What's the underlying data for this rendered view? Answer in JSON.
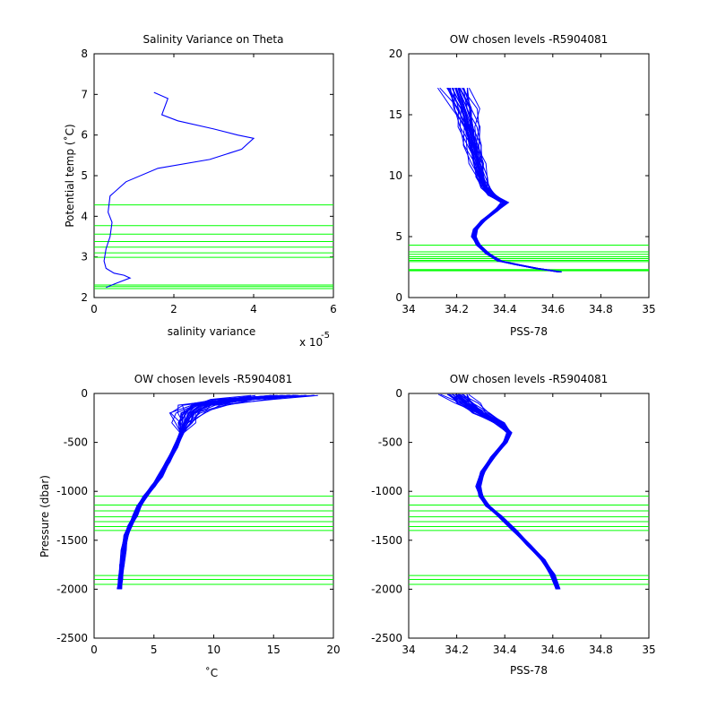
{
  "colors": {
    "profile": "#0000ff",
    "levels": "#00ff00",
    "axes": "#000000",
    "background": "#ffffff"
  },
  "chart_data": [
    {
      "id": "p1",
      "type": "line",
      "title": "Salinity Variance on Theta",
      "xlabel": "salinity variance",
      "x_exponent_label": "x 10",
      "x_exponent_power": "-5",
      "ylabel": "Potential temp (˚C)",
      "xlim": [
        0,
        6
      ],
      "ylim": [
        2,
        8
      ],
      "xticks": [
        0,
        2,
        4,
        6
      ],
      "yticks": [
        2,
        3,
        4,
        5,
        6,
        7,
        8
      ],
      "x_tick_labels": [
        "0",
        "2",
        "4",
        "6"
      ],
      "y_tick_labels": [
        "2",
        "3",
        "4",
        "5",
        "6",
        "7",
        "8"
      ],
      "series": [
        {
          "x": [
            1.5,
            1.85,
            1.7,
            2.1,
            3.0,
            3.6,
            4.0,
            3.7,
            2.9,
            1.6,
            0.8,
            0.4,
            0.35,
            0.45,
            0.4,
            0.3,
            0.25,
            0.3,
            0.5,
            0.75,
            0.9,
            0.55,
            0.3
          ],
          "y": [
            7.05,
            6.9,
            6.5,
            6.35,
            6.15,
            6.0,
            5.92,
            5.65,
            5.4,
            5.18,
            4.85,
            4.5,
            4.1,
            3.85,
            3.5,
            3.2,
            2.9,
            2.72,
            2.6,
            2.55,
            2.48,
            2.35,
            2.25
          ]
        }
      ],
      "levels": [
        4.28,
        3.77,
        3.56,
        3.38,
        3.24,
        3.1,
        2.99,
        2.31,
        2.27,
        2.22
      ]
    },
    {
      "id": "p2",
      "type": "line",
      "title": "OW chosen levels -R5904081",
      "xlabel": "PSS-78",
      "ylabel": "",
      "xlim": [
        34,
        35
      ],
      "ylim": [
        0,
        20
      ],
      "xticks": [
        34,
        34.2,
        34.4,
        34.6,
        34.8,
        35
      ],
      "yticks": [
        0,
        5,
        10,
        15,
        20
      ],
      "x_tick_labels": [
        "34",
        "34.2",
        "34.4",
        "34.6",
        "34.8",
        "35"
      ],
      "y_tick_labels": [
        "0",
        "5",
        "10",
        "15",
        "20"
      ],
      "series": [
        {
          "name": "",
          "x": [
            34.2,
            34.23,
            34.25,
            34.27,
            34.29,
            34.3,
            34.32,
            34.35,
            34.4,
            34.36,
            34.31,
            34.28,
            34.27,
            34.29,
            34.33,
            34.38,
            34.45,
            34.53,
            34.63
          ],
          "y": [
            17.2,
            15.5,
            14.0,
            12.5,
            11.0,
            9.9,
            9.0,
            8.4,
            7.8,
            7.1,
            6.3,
            5.6,
            5.0,
            4.3,
            3.6,
            3.0,
            2.7,
            2.4,
            2.1
          ]
        }
      ],
      "levels": [
        4.3,
        3.75,
        3.55,
        3.35,
        3.2,
        3.05,
        2.95,
        2.3,
        2.25,
        2.2
      ]
    },
    {
      "id": "p3",
      "type": "line",
      "title": "OW chosen levels -R5904081",
      "xlabel": "˚C",
      "ylabel": "Pressure (dbar)",
      "xlim": [
        0,
        20
      ],
      "ylim": [
        -2500,
        0
      ],
      "xticks": [
        0,
        5,
        10,
        15,
        20
      ],
      "yticks": [
        -2500,
        -2000,
        -1500,
        -1000,
        -500,
        0
      ],
      "x_tick_labels": [
        "0",
        "5",
        "10",
        "15",
        "20"
      ],
      "y_tick_labels": [
        "-2500",
        "-2000",
        "-1500",
        "-1000",
        "-500",
        "0"
      ],
      "series": [
        {
          "x": [
            16.5,
            12.0,
            9.0,
            8.0,
            7.6,
            7.3,
            6.8,
            6.2,
            5.5,
            4.9,
            4.3,
            3.8,
            3.4,
            3.0,
            2.7,
            2.5,
            2.3,
            2.2,
            2.15
          ],
          "y": [
            -20,
            -60,
            -120,
            -200,
            -300,
            -400,
            -550,
            -700,
            -850,
            -950,
            -1050,
            -1150,
            -1250,
            -1350,
            -1450,
            -1600,
            -1750,
            -1900,
            -2000
          ]
        }
      ],
      "levels": [
        -1050,
        -1140,
        -1200,
        -1260,
        -1310,
        -1360,
        -1400,
        -1860,
        -1900,
        -1950
      ]
    },
    {
      "id": "p4",
      "type": "line",
      "title": "OW chosen levels -R5904081",
      "xlabel": "PSS-78",
      "ylabel": "",
      "xlim": [
        34,
        35
      ],
      "ylim": [
        -2500,
        0
      ],
      "xticks": [
        34,
        34.2,
        34.4,
        34.6,
        34.8,
        35
      ],
      "yticks": [
        -2500,
        -2000,
        -1500,
        -1000,
        -500,
        0
      ],
      "x_tick_labels": [
        "34",
        "34.2",
        "34.4",
        "34.6",
        "34.8",
        "35"
      ],
      "y_tick_labels": [
        "-2500",
        "-2000",
        "-1500",
        "-1000",
        "-500",
        "0"
      ],
      "series": [
        {
          "x": [
            34.2,
            34.24,
            34.3,
            34.38,
            34.42,
            34.4,
            34.35,
            34.31,
            34.29,
            34.3,
            34.33,
            34.38,
            34.44,
            34.5,
            34.56,
            34.6,
            34.62
          ],
          "y": [
            -10,
            -100,
            -200,
            -300,
            -400,
            -500,
            -650,
            -800,
            -950,
            -1050,
            -1150,
            -1250,
            -1400,
            -1550,
            -1700,
            -1850,
            -2000
          ]
        }
      ],
      "levels": [
        -1050,
        -1140,
        -1200,
        -1260,
        -1310,
        -1360,
        -1400,
        -1860,
        -1900,
        -1950
      ]
    }
  ]
}
